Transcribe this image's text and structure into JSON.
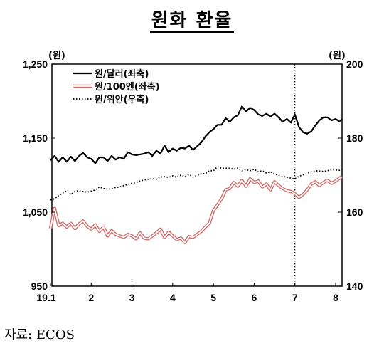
{
  "title": "원화 환율",
  "source": "자료:  ECOS",
  "chart_data": {
    "type": "line",
    "title": "원화 환율",
    "left_unit": "(원)",
    "right_unit": "(원)",
    "left_ylim": [
      950,
      1250
    ],
    "left_ticks": [
      "1,250",
      "1,150",
      "1,050",
      "950"
    ],
    "left_tick_values": [
      1250,
      1150,
      1050,
      950
    ],
    "right_ylim": [
      140,
      200
    ],
    "right_ticks": [
      "200",
      "180",
      "160",
      "140"
    ],
    "right_tick_values": [
      200,
      180,
      160,
      140
    ],
    "x_ticks": [
      "19.1",
      "2",
      "3",
      "4",
      "5",
      "6",
      "7",
      "8"
    ],
    "x_tick_values": [
      1,
      2,
      3,
      4,
      5,
      6,
      7,
      8
    ],
    "xlim": [
      1,
      8.2
    ],
    "vline_x": 7,
    "grid": false,
    "legend_position": "top-left",
    "series": [
      {
        "name": "원/달러(좌축)",
        "axis": "left",
        "color": "#000000",
        "style": "solid",
        "x": [
          1.0,
          1.1,
          1.2,
          1.3,
          1.4,
          1.5,
          1.6,
          1.7,
          1.8,
          1.9,
          2.0,
          2.1,
          2.2,
          2.3,
          2.4,
          2.5,
          2.6,
          2.7,
          2.8,
          2.9,
          3.0,
          3.1,
          3.2,
          3.3,
          3.4,
          3.5,
          3.6,
          3.7,
          3.8,
          3.9,
          4.0,
          4.1,
          4.2,
          4.3,
          4.4,
          4.5,
          4.6,
          4.7,
          4.8,
          4.9,
          5.0,
          5.1,
          5.2,
          5.3,
          5.4,
          5.5,
          5.6,
          5.7,
          5.8,
          5.9,
          6.0,
          6.1,
          6.2,
          6.3,
          6.4,
          6.5,
          6.6,
          6.7,
          6.8,
          6.9,
          7.0,
          7.1,
          7.2,
          7.3,
          7.4,
          7.5,
          7.6,
          7.7,
          7.8,
          7.9,
          8.0,
          8.1,
          8.15
        ],
        "values": [
          1120,
          1126,
          1118,
          1124,
          1118,
          1125,
          1119,
          1126,
          1130,
          1124,
          1122,
          1116,
          1124,
          1124,
          1119,
          1126,
          1121,
          1124,
          1122,
          1131,
          1128,
          1127,
          1128,
          1129,
          1131,
          1126,
          1133,
          1129,
          1140,
          1131,
          1136,
          1133,
          1137,
          1136,
          1140,
          1134,
          1139,
          1144,
          1152,
          1158,
          1162,
          1168,
          1168,
          1177,
          1172,
          1178,
          1181,
          1193,
          1186,
          1191,
          1188,
          1182,
          1180,
          1183,
          1179,
          1183,
          1178,
          1172,
          1176,
          1171,
          1182,
          1165,
          1158,
          1156,
          1159,
          1167,
          1174,
          1178,
          1178,
          1174,
          1176,
          1172,
          1176
        ]
      },
      {
        "name": "원/100엔(좌축)",
        "axis": "left",
        "color": "#d46a6a",
        "style": "double",
        "x": [
          1.0,
          1.1,
          1.2,
          1.3,
          1.4,
          1.5,
          1.6,
          1.7,
          1.8,
          1.9,
          2.0,
          2.1,
          2.2,
          2.3,
          2.4,
          2.5,
          2.6,
          2.7,
          2.8,
          2.9,
          3.0,
          3.1,
          3.2,
          3.3,
          3.4,
          3.5,
          3.6,
          3.7,
          3.8,
          3.9,
          4.0,
          4.1,
          4.2,
          4.3,
          4.4,
          4.5,
          4.6,
          4.7,
          4.8,
          4.9,
          5.0,
          5.1,
          5.2,
          5.3,
          5.4,
          5.5,
          5.6,
          5.7,
          5.8,
          5.9,
          6.0,
          6.1,
          6.2,
          6.3,
          6.4,
          6.5,
          6.6,
          6.7,
          6.8,
          6.9,
          7.0,
          7.1,
          7.2,
          7.3,
          7.4,
          7.5,
          7.6,
          7.7,
          7.8,
          7.9,
          8.0,
          8.1,
          8.15
        ],
        "values": [
          1028,
          1055,
          1032,
          1035,
          1030,
          1035,
          1028,
          1034,
          1038,
          1031,
          1027,
          1033,
          1024,
          1030,
          1018,
          1025,
          1020,
          1018,
          1016,
          1020,
          1018,
          1014,
          1022,
          1015,
          1014,
          1018,
          1022,
          1027,
          1016,
          1023,
          1018,
          1013,
          1015,
          1009,
          1017,
          1016,
          1020,
          1024,
          1030,
          1035,
          1052,
          1060,
          1068,
          1080,
          1082,
          1090,
          1085,
          1093,
          1085,
          1095,
          1090,
          1092,
          1084,
          1088,
          1080,
          1091,
          1086,
          1082,
          1079,
          1078,
          1075,
          1070,
          1074,
          1080,
          1088,
          1091,
          1086,
          1090,
          1093,
          1089,
          1092,
          1096,
          1098
        ]
      },
      {
        "name": "원/위안(우축)",
        "axis": "right",
        "color": "#000000",
        "style": "dotted",
        "x": [
          1.0,
          1.1,
          1.2,
          1.3,
          1.4,
          1.5,
          1.6,
          1.7,
          1.8,
          1.9,
          2.0,
          2.1,
          2.2,
          2.3,
          2.4,
          2.5,
          2.6,
          2.7,
          2.8,
          2.9,
          3.0,
          3.1,
          3.2,
          3.3,
          3.4,
          3.5,
          3.6,
          3.7,
          3.8,
          3.9,
          4.0,
          4.1,
          4.2,
          4.3,
          4.4,
          4.5,
          4.6,
          4.7,
          4.8,
          4.9,
          5.0,
          5.1,
          5.2,
          5.3,
          5.4,
          5.5,
          5.6,
          5.7,
          5.8,
          5.9,
          6.0,
          6.1,
          6.2,
          6.3,
          6.4,
          6.5,
          6.6,
          6.7,
          6.8,
          6.9,
          7.0,
          7.1,
          7.2,
          7.3,
          7.4,
          7.5,
          7.6,
          7.7,
          7.8,
          7.9,
          8.0,
          8.1,
          8.15
        ],
        "values": [
          163.3,
          163.6,
          164.5,
          165.2,
          165.8,
          164.8,
          165.6,
          165.8,
          165.6,
          165.4,
          165.7,
          166.0,
          166.8,
          166.4,
          166.2,
          166.3,
          166.7,
          166.8,
          167.2,
          167.5,
          167.8,
          168.0,
          168.4,
          168.7,
          168.9,
          169.1,
          168.9,
          169.5,
          169.6,
          169.4,
          169.8,
          169.4,
          170.0,
          169.6,
          170.2,
          169.5,
          169.9,
          170.4,
          170.4,
          171.2,
          171.2,
          172.3,
          171.8,
          171.9,
          171.8,
          171.6,
          171.9,
          171.2,
          171.5,
          171.2,
          171.6,
          170.9,
          171.2,
          170.6,
          170.9,
          170.3,
          170.0,
          169.6,
          169.5,
          169.2,
          169.0,
          169.7,
          170.1,
          170.4,
          170.9,
          171.2,
          171.1,
          171.0,
          171.2,
          171.5,
          171.4,
          171.3,
          171.5
        ]
      }
    ]
  }
}
